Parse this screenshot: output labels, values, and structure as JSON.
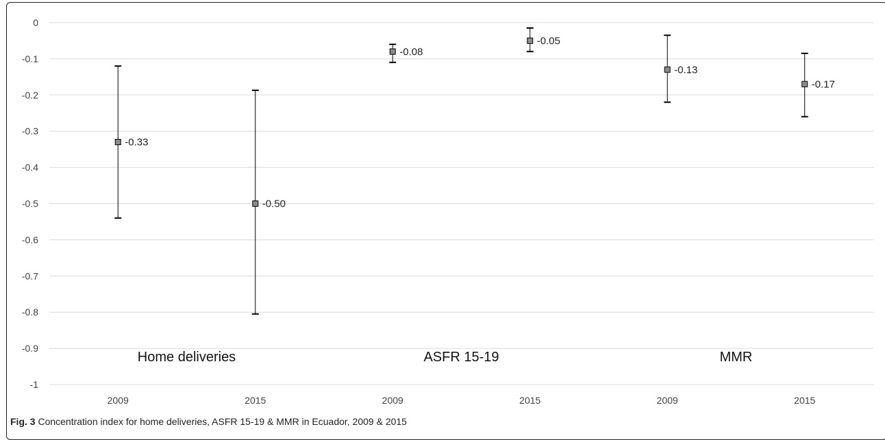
{
  "chart_data": {
    "type": "scatter",
    "categories": [
      "2009",
      "2015",
      "2009",
      "2015",
      "2009",
      "2015"
    ],
    "points": [
      {
        "value": -0.33,
        "label": "-0.33",
        "lower": -0.54,
        "upper": -0.12
      },
      {
        "value": -0.5,
        "label": "-0.50",
        "lower": -0.805,
        "upper": -0.187
      },
      {
        "value": -0.08,
        "label": "-0.08",
        "lower": -0.11,
        "upper": -0.06
      },
      {
        "value": -0.05,
        "label": "-0.05",
        "lower": -0.08,
        "upper": -0.015
      },
      {
        "value": -0.13,
        "label": "-0.13",
        "lower": -0.22,
        "upper": -0.035
      },
      {
        "value": -0.17,
        "label": "-0.17",
        "lower": -0.26,
        "upper": -0.085
      }
    ],
    "group_labels": [
      "Home deliveries",
      "ASFR 15-19",
      "MMR"
    ],
    "y_ticks": [
      "0",
      "-0.1",
      "-0.2",
      "-0.3",
      "-0.4",
      "-0.5",
      "-0.6",
      "-0.7",
      "-0.8",
      "-0.9",
      "-1"
    ],
    "ylim": [
      -1,
      0
    ],
    "grid": true,
    "error_bars": true,
    "marker_color": "#8c8c8c",
    "grid_color": "#d9d9d9"
  },
  "caption": {
    "label": "Fig. 3",
    "text": " Concentration index for home deliveries, ASFR 15-19 & MMR in Ecuador, 2009 & 2015"
  }
}
